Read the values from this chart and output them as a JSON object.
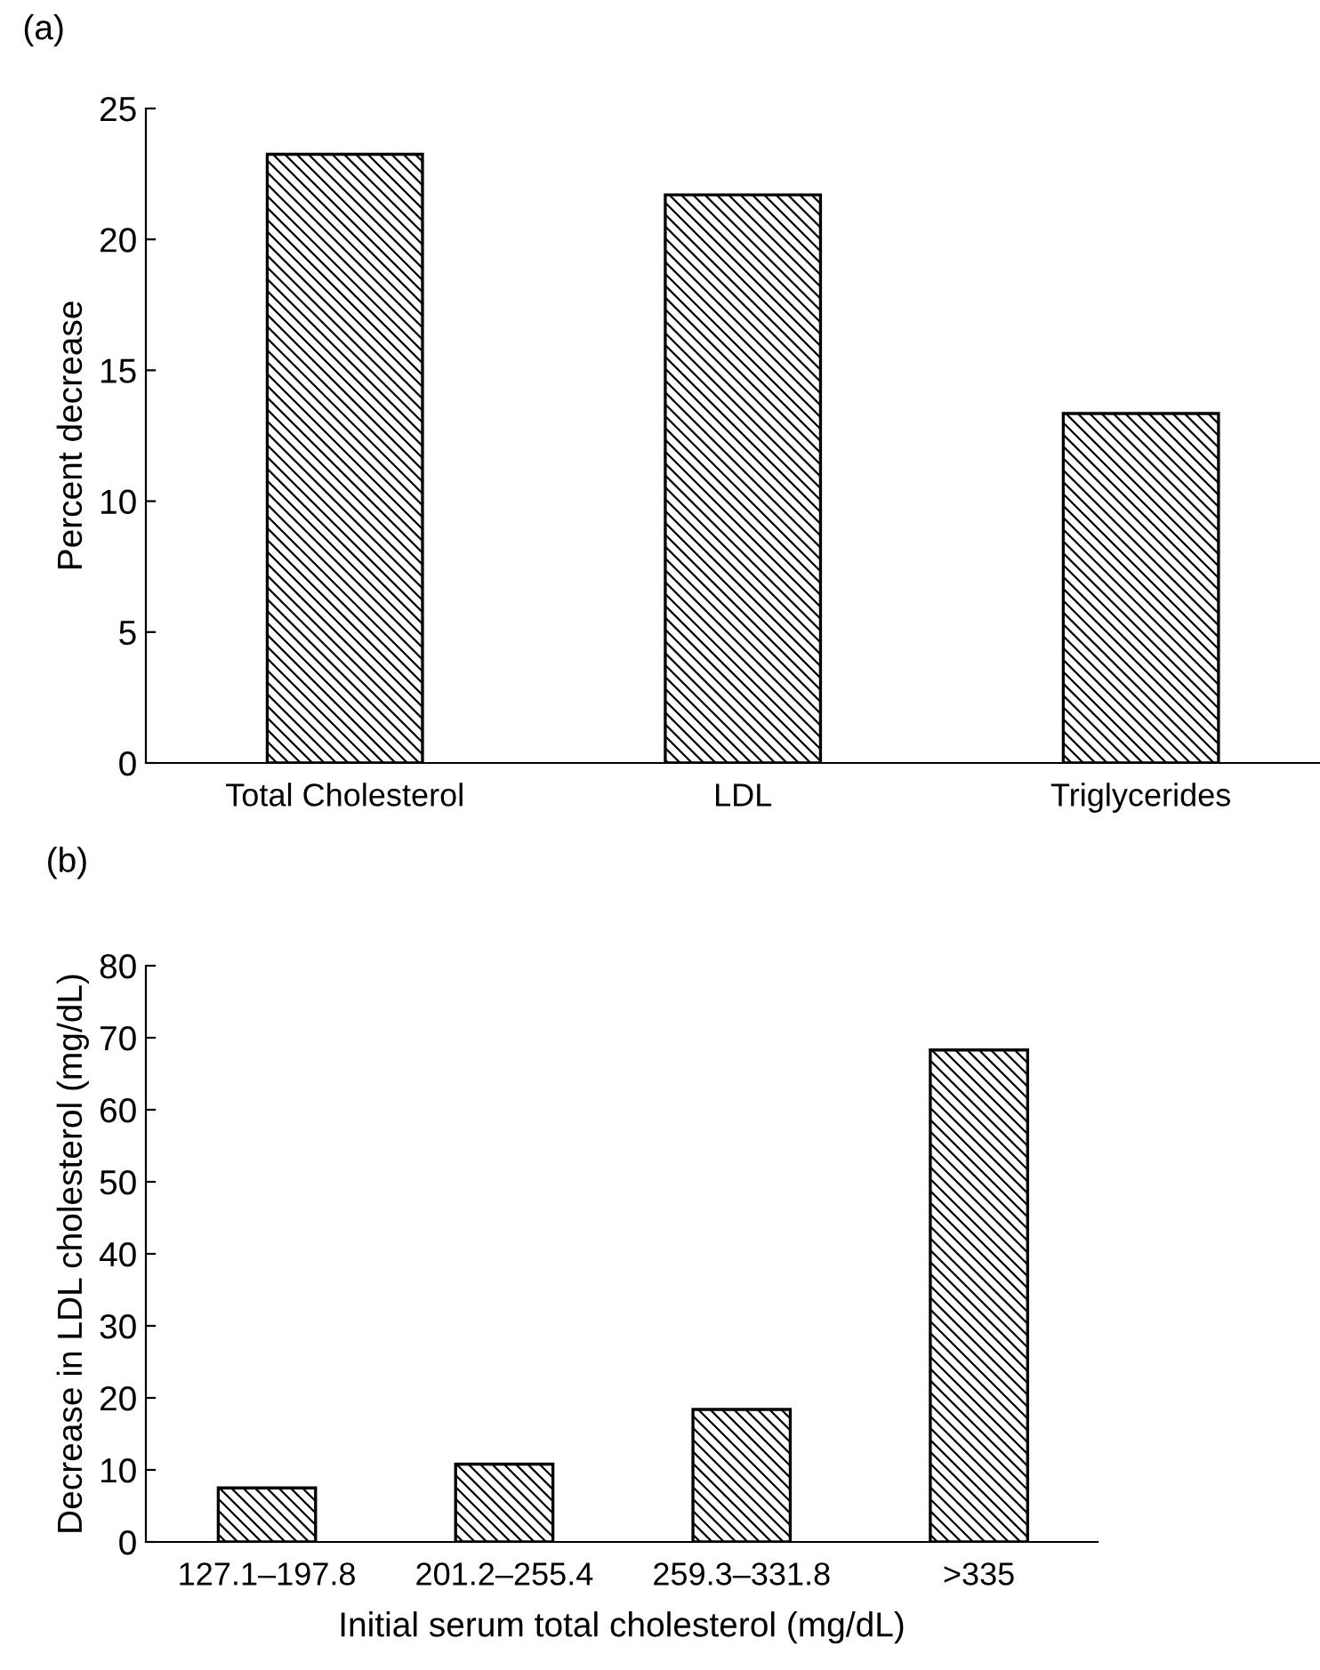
{
  "chart_data": [
    {
      "type": "bar",
      "title": "(a)",
      "ylabel": "Percent decrease",
      "categories": [
        "Total Cholesterol",
        "LDL",
        "Triglycerides"
      ],
      "values": [
        23.25,
        21.7,
        13.35
      ],
      "color": "#000000",
      "ylim": [
        0,
        25
      ],
      "yticks": [
        0,
        5,
        10,
        15,
        20,
        25
      ],
      "grid": false,
      "legend": false
    },
    {
      "type": "bar",
      "title": "(b)",
      "ylabel": "Decrease in LDL cholesterol (mg/dL)",
      "xlabel": "Initial serum total cholesterol (mg/dL)",
      "categories": [
        "127.1–197.8",
        "201.2–255.4",
        "259.3–331.8",
        ">335"
      ],
      "values": [
        7.5,
        10.8,
        18.4,
        68.3
      ],
      "color": "#000000",
      "ylim": [
        0,
        80
      ],
      "yticks": [
        0,
        10,
        20,
        30,
        40,
        50,
        60,
        70,
        80
      ],
      "grid": false,
      "legend": false
    }
  ]
}
